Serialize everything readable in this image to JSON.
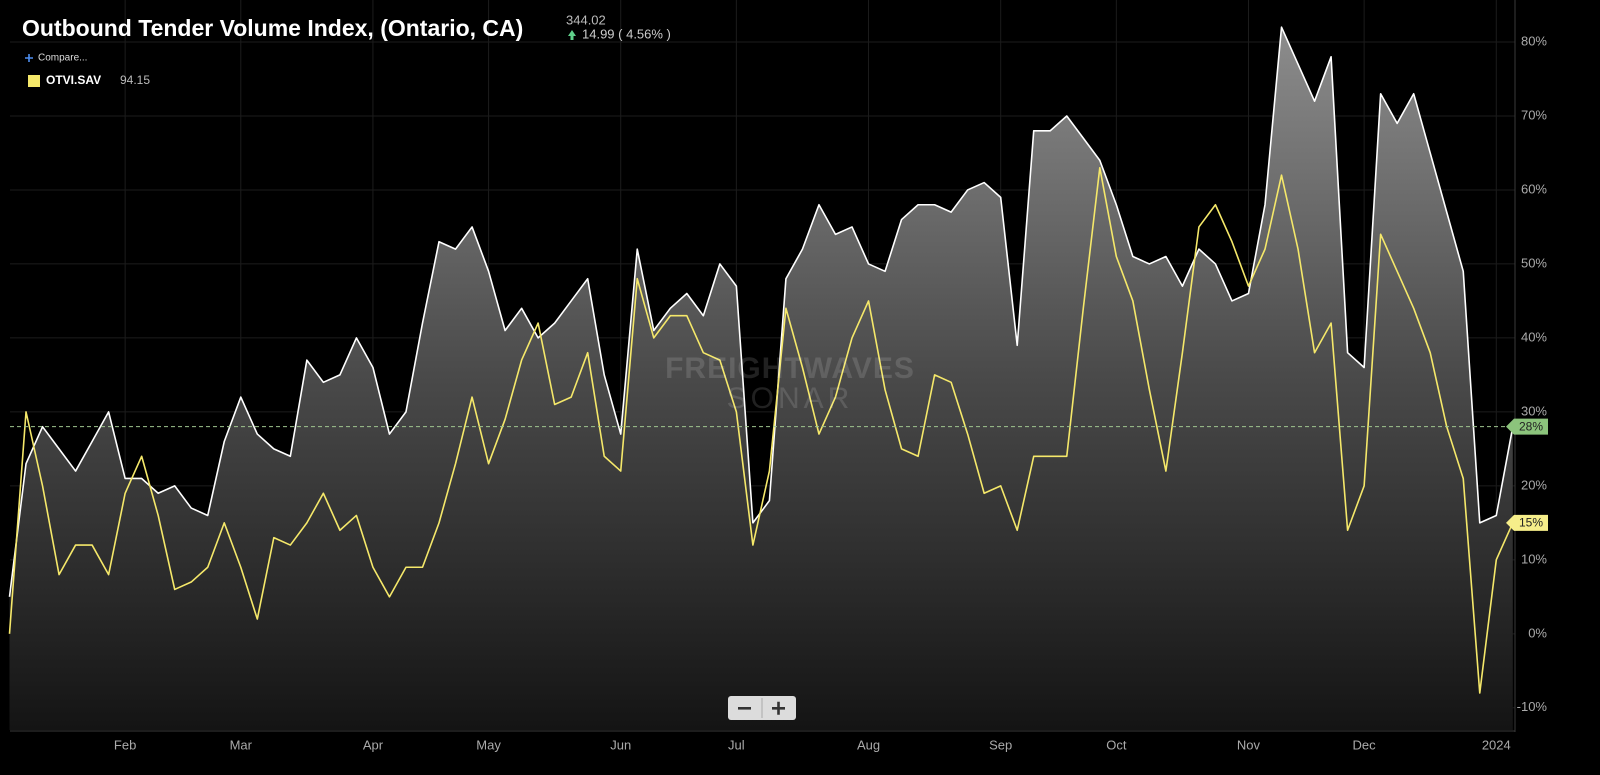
{
  "chart_data": {
    "type": "line",
    "title": "Outbound Tender Volume Index, (Ontario, CA)",
    "last": 344.02,
    "change": "14.99 ( 4.56% )",
    "compare": "Compare...",
    "watermark": [
      "FREIGHTWAVES",
      "SONAR"
    ],
    "categories": [
      null,
      null,
      null,
      null,
      null,
      null,
      null,
      "Feb",
      null,
      null,
      null,
      null,
      null,
      null,
      "Mar",
      null,
      null,
      null,
      null,
      null,
      null,
      null,
      "Apr",
      null,
      null,
      null,
      null,
      null,
      null,
      "May",
      null,
      null,
      null,
      null,
      null,
      null,
      null,
      "Jun",
      null,
      null,
      null,
      null,
      null,
      null,
      "Jul",
      null,
      null,
      null,
      null,
      null,
      null,
      null,
      "Aug",
      null,
      null,
      null,
      null,
      null,
      null,
      null,
      "Sep",
      null,
      null,
      null,
      null,
      null,
      null,
      "Oct",
      null,
      null,
      null,
      null,
      null,
      null,
      null,
      "Nov",
      null,
      null,
      null,
      null,
      null,
      null,
      "Dec",
      null,
      null,
      null,
      null,
      null,
      null,
      null,
      "2024",
      null
    ],
    "series": [
      {
        "color": "#ffffff",
        "area": true,
        "last_label": "28%",
        "badge_color": "#8cc47c",
        "values": [
          5,
          23,
          28,
          25,
          22,
          26,
          30,
          21,
          21,
          19,
          20,
          17,
          16,
          26,
          32,
          27,
          25,
          24,
          37,
          34,
          35,
          40,
          36,
          27,
          30,
          42,
          53,
          52,
          55,
          49,
          41,
          44,
          40,
          42,
          45,
          48,
          35,
          27,
          52,
          41,
          44,
          46,
          43,
          50,
          47,
          15,
          18,
          48,
          52,
          58,
          54,
          55,
          50,
          49,
          56,
          58,
          58,
          57,
          60,
          61,
          59,
          39,
          68,
          68,
          70,
          67,
          64,
          58,
          51,
          50,
          51,
          47,
          52,
          50,
          45,
          46,
          58,
          82,
          77,
          72,
          78,
          38,
          36,
          73,
          69,
          73,
          65,
          57,
          49,
          15,
          16,
          28
        ]
      },
      {
        "name": "OTVI.SAV",
        "legend_value": 94.15,
        "color": "#f5e86a",
        "area": false,
        "last_label": "15%",
        "badge_color": "#f6ee8a",
        "values": [
          0,
          30,
          20,
          8,
          12,
          12,
          8,
          19,
          24,
          16,
          6,
          7,
          9,
          15,
          9,
          2,
          13,
          12,
          15,
          19,
          14,
          16,
          9,
          5,
          9,
          9,
          15,
          23,
          32,
          23,
          29,
          37,
          42,
          31,
          32,
          38,
          24,
          22,
          48,
          40,
          43,
          43,
          38,
          37,
          30,
          12,
          22,
          44,
          36,
          27,
          32,
          40,
          45,
          33,
          25,
          24,
          35,
          34,
          27,
          19,
          20,
          14,
          24,
          24,
          24,
          44,
          63,
          51,
          45,
          33,
          22,
          38,
          55,
          58,
          53,
          47,
          52,
          62,
          52,
          38,
          42,
          14,
          20,
          54,
          49,
          44,
          38,
          28,
          21,
          -8,
          10,
          15
        ]
      }
    ],
    "ylim": [
      -13,
      85
    ],
    "yticks": [
      {
        "value": -10,
        "label": "-10%"
      },
      {
        "value": 0,
        "label": "0%"
      },
      {
        "value": 10,
        "label": "10%"
      },
      {
        "value": 20,
        "label": "20%"
      },
      {
        "value": 30,
        "label": "30%"
      },
      {
        "value": 40,
        "label": "40%"
      },
      {
        "value": 50,
        "label": "50%"
      },
      {
        "value": 60,
        "label": "60%"
      },
      {
        "value": 70,
        "label": "70%"
      },
      {
        "value": 80,
        "label": "80%"
      }
    ],
    "grid": true,
    "last_value_line": true
  }
}
